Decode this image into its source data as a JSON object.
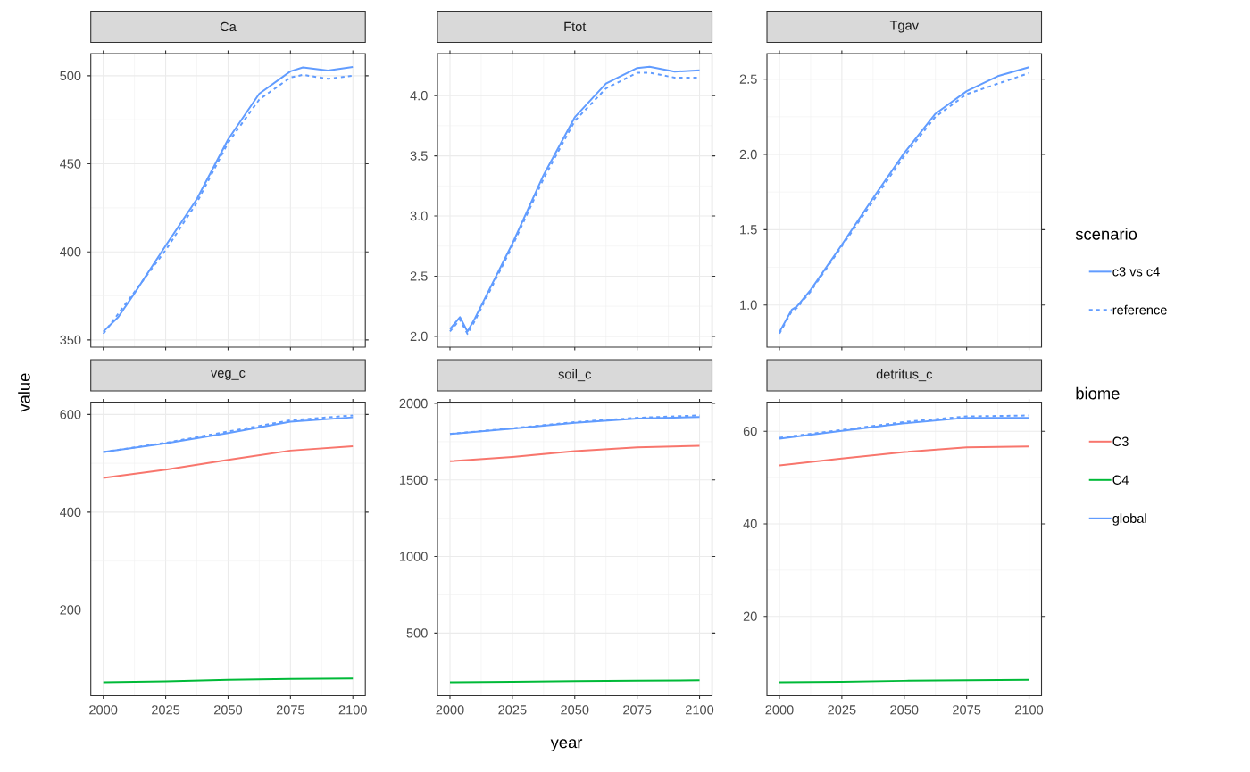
{
  "chart_data": [
    {
      "type": "line",
      "title": "Ca",
      "xlim": [
        1995,
        2105
      ],
      "xticks": [
        2000,
        2025,
        2050,
        2075,
        2100
      ],
      "ylim": [
        345.9,
        512.6
      ],
      "yticks": [
        350,
        400,
        450,
        500
      ],
      "grid": true,
      "tick_labels": "y",
      "series": [
        {
          "color": "#619CFF",
          "line_style": "solid",
          "x": [
            2000,
            2006,
            2012.5,
            2025,
            2037.5,
            2050,
            2062.5,
            2075,
            2080,
            2090,
            2100
          ],
          "values": [
            354.7,
            363,
            376.5,
            403.5,
            430,
            463.8,
            489.8,
            502.5,
            504.7,
            503,
            505
          ]
        },
        {
          "color": "#619CFF",
          "line_style": "dashed",
          "x": [
            2000,
            2025,
            2037.5,
            2050,
            2062.5,
            2075,
            2080,
            2090,
            2100
          ],
          "values": [
            353.5,
            401,
            428,
            462,
            486.5,
            499,
            500.5,
            498.3,
            500
          ]
        }
      ]
    },
    {
      "type": "line",
      "title": "Ftot",
      "xlim": [
        1995,
        2105
      ],
      "xticks": [
        2000,
        2025,
        2050,
        2075,
        2100
      ],
      "ylim": [
        1.91,
        4.35
      ],
      "yticks": [
        {
          "value": 2,
          "label": "2.0"
        },
        2.5,
        {
          "value": 3,
          "label": "3.0"
        },
        3.5,
        {
          "value": 4,
          "label": "4.0"
        }
      ],
      "grid": true,
      "tick_labels": "y",
      "series": [
        {
          "color": "#619CFF",
          "line_style": "solid",
          "x": [
            2000,
            2004,
            2007,
            2010,
            2025,
            2037.5,
            2050,
            2062.5,
            2075,
            2080,
            2090,
            2100
          ],
          "values": [
            2.06,
            2.16,
            2.04,
            2.15,
            2.77,
            3.34,
            3.82,
            4.1,
            4.23,
            4.24,
            4.2,
            4.21
          ]
        },
        {
          "color": "#619CFF",
          "line_style": "dashed",
          "x": [
            2000,
            2004,
            2007,
            2010,
            2025,
            2037.5,
            2050,
            2062.5,
            2075,
            2080,
            2090,
            2100
          ],
          "values": [
            2.04,
            2.14,
            2.02,
            2.13,
            2.75,
            3.31,
            3.79,
            4.06,
            4.19,
            4.19,
            4.15,
            4.15
          ]
        }
      ]
    },
    {
      "type": "line",
      "title": "Tgav",
      "xlim": [
        1995,
        2105
      ],
      "xticks": [
        2000,
        2025,
        2050,
        2075,
        2100
      ],
      "ylim": [
        0.72,
        2.67
      ],
      "yticks": [
        {
          "value": 1,
          "label": "1.0"
        },
        1.5,
        {
          "value": 2,
          "label": "2.0"
        },
        2.5
      ],
      "grid": true,
      "tick_labels": "y",
      "legend": "right",
      "legend_title": "scenario",
      "series": [
        {
          "name": "c3 vs c4",
          "color": "#619CFF",
          "line_style": "solid",
          "x": [
            2000,
            2005,
            2007,
            2012.5,
            2025,
            2037.5,
            2050,
            2062.5,
            2075,
            2087.5,
            2100
          ],
          "values": [
            0.82,
            0.97,
            0.99,
            1.1,
            1.4,
            1.71,
            2.01,
            2.27,
            2.42,
            2.52,
            2.58
          ]
        },
        {
          "name": "reference",
          "color": "#619CFF",
          "line_style": "dashed",
          "x": [
            2000,
            2005,
            2007,
            2012.5,
            2025,
            2037.5,
            2050,
            2062.5,
            2075,
            2087.5,
            2100
          ],
          "values": [
            0.81,
            0.96,
            0.98,
            1.09,
            1.39,
            1.69,
            1.99,
            2.25,
            2.4,
            2.47,
            2.54
          ]
        }
      ]
    },
    {
      "type": "line",
      "title": "veg_c",
      "ylabel": "value",
      "xlim": [
        1995,
        2105
      ],
      "xticks": [
        2000,
        2025,
        2050,
        2075,
        2100
      ],
      "ylim": [
        24.7,
        625.3
      ],
      "yticks": [
        200,
        400,
        600
      ],
      "grid": true,
      "series": [
        {
          "color": "#F8766D",
          "line_style": "solid",
          "x": [
            2000,
            2025,
            2050,
            2075,
            2100
          ],
          "values": [
            470,
            487,
            507,
            526,
            535
          ]
        },
        {
          "color": "#00BA38",
          "line_style": "solid",
          "x": [
            2000,
            2025,
            2050,
            2075,
            2100
          ],
          "values": [
            52,
            54,
            57,
            59,
            60
          ]
        },
        {
          "color": "#619CFF",
          "line_style": "solid",
          "x": [
            2000,
            2025,
            2050,
            2075,
            2100
          ],
          "values": [
            523,
            541,
            562,
            585,
            594
          ]
        },
        {
          "color": "#619CFF",
          "line_style": "dashed",
          "x": [
            2000,
            2025,
            2050,
            2075,
            2100
          ],
          "values": [
            523,
            542,
            565,
            588,
            598
          ]
        }
      ]
    },
    {
      "type": "line",
      "title": "soil_c",
      "xlabel": "year",
      "xlim": [
        1995,
        2105
      ],
      "xticks": [
        2000,
        2025,
        2050,
        2075,
        2100
      ],
      "ylim": [
        91,
        2009
      ],
      "yticks": [
        500,
        1000,
        1500,
        2000
      ],
      "grid": true,
      "series": [
        {
          "color": "#F8766D",
          "line_style": "solid",
          "x": [
            2000,
            2025,
            2050,
            2075,
            2100
          ],
          "values": [
            1622,
            1651,
            1688,
            1713,
            1723
          ]
        },
        {
          "color": "#00BA38",
          "line_style": "solid",
          "x": [
            2000,
            2025,
            2050,
            2075,
            2100
          ],
          "values": [
            178,
            182,
            186,
            189,
            191
          ]
        },
        {
          "color": "#619CFF",
          "line_style": "solid",
          "x": [
            2000,
            2025,
            2050,
            2075,
            2100
          ],
          "values": [
            1800,
            1835,
            1874,
            1901,
            1911
          ]
        },
        {
          "color": "#619CFF",
          "line_style": "dashed",
          "x": [
            2000,
            2025,
            2050,
            2075,
            2100
          ],
          "values": [
            1801,
            1838,
            1878,
            1906,
            1922
          ]
        }
      ]
    },
    {
      "type": "line",
      "title": "detritus_c",
      "xlim": [
        1995,
        2105
      ],
      "xticks": [
        2000,
        2025,
        2050,
        2075,
        2100
      ],
      "ylim": [
        2.9,
        66.3
      ],
      "yticks": [
        20,
        40,
        60
      ],
      "grid": true,
      "legend": "right",
      "legend_title": "biome",
      "series": [
        {
          "name": "C3",
          "color": "#F8766D",
          "line_style": "solid",
          "x": [
            2000,
            2025,
            2050,
            2075,
            2100
          ],
          "values": [
            52.6,
            54.1,
            55.5,
            56.5,
            56.7
          ]
        },
        {
          "name": "C4",
          "color": "#00BA38",
          "line_style": "solid",
          "x": [
            2000,
            2025,
            2050,
            2075,
            2100
          ],
          "values": [
            5.8,
            5.9,
            6.1,
            6.2,
            6.3
          ]
        },
        {
          "name": "global",
          "color": "#619CFF",
          "line_style": "solid",
          "x": [
            2000,
            2025,
            2050,
            2075,
            2100
          ],
          "values": [
            58.4,
            60.1,
            61.7,
            62.9,
            62.9
          ]
        },
        {
          "color": "#619CFF",
          "line_style": "dashed",
          "x": [
            2000,
            2025,
            2050,
            2075,
            2100
          ],
          "values": [
            58.6,
            60.3,
            62.0,
            63.2,
            63.4
          ]
        }
      ]
    }
  ]
}
